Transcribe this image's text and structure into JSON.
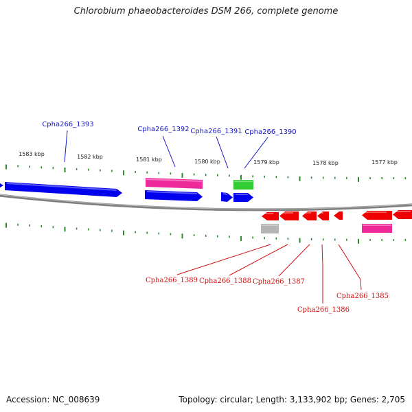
{
  "title": "Chlorobium phaeobacteroides DSM 266, complete genome",
  "colors": {
    "forward_gene": "#0000ee",
    "reverse_gene": "#ee0000",
    "forward_label": "#1515c8",
    "reverse_label": "#d01010",
    "pseudogene": "#ee2a9a",
    "rna": "#33cc33",
    "other": "#b4b4b4",
    "tick": "#2b8a2b",
    "backbone": "#808080"
  },
  "scale_labels": [
    "1583 kbp",
    "1582 kbp",
    "1581 kbp",
    "1580 kbp",
    "1579 kbp",
    "1578 kbp",
    "1577 kbp"
  ],
  "gene_labels": {
    "forward": [
      "Cpha266_1393",
      "Cpha266_1392",
      "Cpha266_1391",
      "Cpha266_1390"
    ],
    "reverse": [
      "Cpha266_1389",
      "Cpha266_1388",
      "Cpha266_1387",
      "Cpha266_1386",
      "Cpha266_1385"
    ]
  },
  "footer": {
    "accession": "Accession: NC_008639",
    "topology": "Topology: circular; Length: 3,133,902 bp; Genes: 2,705"
  }
}
